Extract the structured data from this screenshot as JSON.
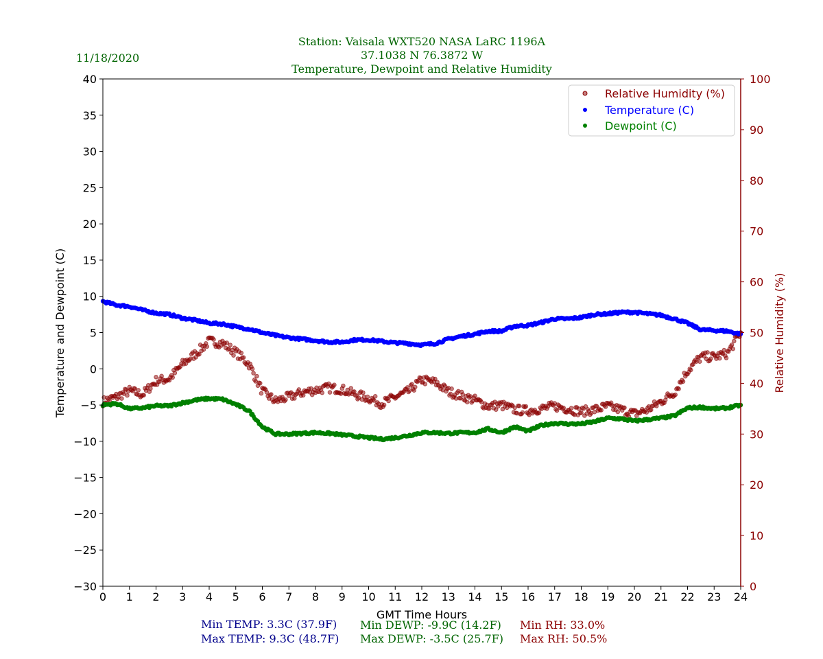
{
  "header": {
    "date": "11/18/2020",
    "title_line1": "Station:  Vaisala WXT520  NASA LaRC 1196A",
    "title_line2": "37.1038 N 76.3872 W",
    "title_line3": "Temperature, Dewpoint and Relative Humidity"
  },
  "stats": {
    "min_temp": "Min TEMP: 3.3C (37.9F)",
    "max_temp": "Max TEMP: 9.3C (48.7F)",
    "min_dewp": "Min DEWP: -9.9C (14.2F)",
    "max_dewp": "Max DEWP: -3.5C (25.7F)",
    "min_rh": "Min RH: 33.0%",
    "max_rh": "Max RH: 50.5%"
  },
  "colors": {
    "title": "#006400",
    "temp": "#0000ff",
    "dewp": "#008000",
    "rh": "#8b0000",
    "temp_stat": "#00008b"
  },
  "chart_data": {
    "type": "scatter",
    "xlabel": "GMT Time Hours",
    "ylabel": "Temperature and Dewpoint (C)",
    "y2label": "Relative Humidity (%)",
    "xlim": [
      0,
      24
    ],
    "ylim": [
      -30,
      40
    ],
    "y2lim": [
      0,
      100
    ],
    "xticks": [
      0,
      1,
      2,
      3,
      4,
      5,
      6,
      7,
      8,
      9,
      10,
      11,
      12,
      13,
      14,
      15,
      16,
      17,
      18,
      19,
      20,
      21,
      22,
      23,
      24
    ],
    "yticks": [
      -30,
      -25,
      -20,
      -15,
      -10,
      -5,
      0,
      5,
      10,
      15,
      20,
      25,
      30,
      35,
      40
    ],
    "y2ticks": [
      0,
      10,
      20,
      30,
      40,
      50,
      60,
      70,
      80,
      90,
      100
    ],
    "legend_position": "top-right",
    "x": [
      0,
      0.5,
      1,
      1.5,
      2,
      2.5,
      3,
      3.5,
      4,
      4.5,
      5,
      5.5,
      6,
      6.5,
      7,
      7.5,
      8,
      8.5,
      9,
      9.5,
      10,
      10.5,
      11,
      11.5,
      12,
      12.5,
      13,
      13.5,
      14,
      14.5,
      15,
      15.5,
      16,
      16.5,
      17,
      17.5,
      18,
      18.5,
      19,
      19.5,
      20,
      20.5,
      21,
      21.5,
      22,
      22.5,
      23,
      23.5,
      24
    ],
    "series": [
      {
        "name": "Relative Humidity (%)",
        "axis": "right",
        "color": "#8b0000",
        "values": [
          36.4,
          37.3,
          38.5,
          37.8,
          40.5,
          40.9,
          43.8,
          45.9,
          48.3,
          47.9,
          46.1,
          43.8,
          38.4,
          36.5,
          37.3,
          38.2,
          38.7,
          39.1,
          38.8,
          37.8,
          37.1,
          36.0,
          37.3,
          38.4,
          40.7,
          40.2,
          38.4,
          37.5,
          36.7,
          35.5,
          35.7,
          34.8,
          34.6,
          35.0,
          35.5,
          35.0,
          34.4,
          34.8,
          35.5,
          34.8,
          34.0,
          34.8,
          36.4,
          38.2,
          42.5,
          45.2,
          45.2,
          45.9,
          50.0
        ]
      },
      {
        "name": "Temperature (C)",
        "axis": "left",
        "color": "#0000ff",
        "values": [
          9.3,
          8.8,
          8.6,
          8.1,
          7.7,
          7.5,
          7.0,
          6.7,
          6.3,
          6.2,
          5.8,
          5.5,
          5.0,
          4.6,
          4.3,
          4.1,
          3.9,
          3.7,
          3.7,
          4.0,
          4.0,
          3.8,
          3.6,
          3.5,
          3.3,
          3.5,
          4.1,
          4.5,
          4.8,
          5.2,
          5.2,
          5.9,
          6.0,
          6.4,
          6.9,
          6.9,
          7.1,
          7.5,
          7.6,
          7.8,
          7.8,
          7.6,
          7.4,
          6.9,
          6.3,
          5.4,
          5.3,
          5.2,
          4.8
        ]
      },
      {
        "name": "Dewpoint (C)",
        "axis": "left",
        "color": "#008000",
        "values": [
          -5.0,
          -4.8,
          -5.5,
          -5.4,
          -5.1,
          -5.1,
          -4.7,
          -4.3,
          -4.1,
          -4.2,
          -4.9,
          -5.8,
          -8.0,
          -9.0,
          -9.0,
          -8.9,
          -8.8,
          -8.9,
          -9.1,
          -9.3,
          -9.5,
          -9.7,
          -9.5,
          -9.2,
          -8.8,
          -8.8,
          -8.9,
          -8.8,
          -8.8,
          -8.3,
          -8.8,
          -8.0,
          -8.6,
          -7.8,
          -7.5,
          -7.6,
          -7.6,
          -7.3,
          -6.8,
          -6.9,
          -7.2,
          -7.0,
          -6.8,
          -6.5,
          -5.4,
          -5.3,
          -5.5,
          -5.4,
          -5.0
        ]
      }
    ]
  }
}
